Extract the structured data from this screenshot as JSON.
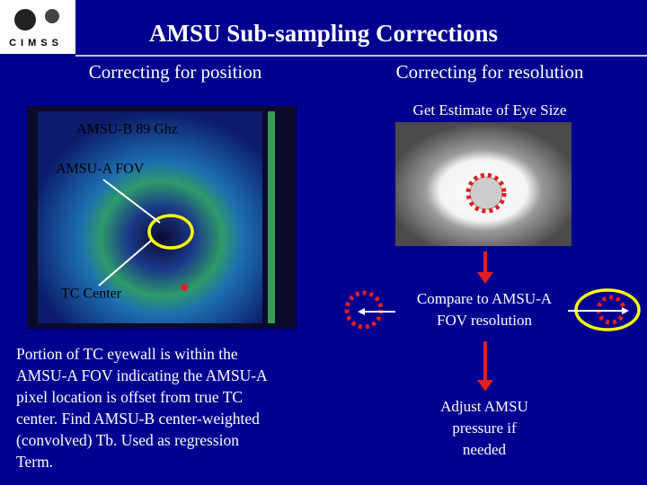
{
  "header": {
    "logo": "CIMSS",
    "title": "AMSU Sub-sampling Corrections"
  },
  "left": {
    "heading": "Correcting for position",
    "image_labels": [
      "AMSU-B 89 Ghz",
      "AMSU-A FOV",
      "TC Center"
    ],
    "body_lines": [
      "Portion of TC eyewall is within the",
      "AMSU-A FOV indicating the AMSU-A",
      "pixel location is offset from true TC",
      "center.  Find AMSU-B center-weighted",
      "(convolved) Tb.  Used as regression",
      "Term."
    ]
  },
  "right": {
    "heading": "Correcting for resolution",
    "steps": [
      [
        "Get Estimate of Eye Size"
      ],
      [
        "Compare to AMSU-A",
        "FOV resolution"
      ],
      [
        "Adjust AMSU",
        "pressure if",
        "needed"
      ]
    ]
  }
}
